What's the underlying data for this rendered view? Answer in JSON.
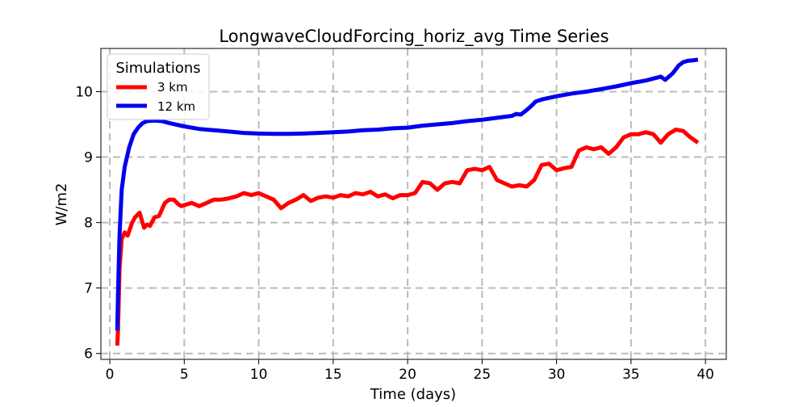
{
  "chart_data": {
    "type": "line",
    "title": "LongwaveCloudForcing_horiz_avg Time Series",
    "xlabel": "Time (days)",
    "ylabel": "W/m2",
    "xlim": [
      -0.6,
      41.4
    ],
    "ylim": [
      5.91,
      10.66
    ],
    "xticks": [
      0,
      5,
      10,
      15,
      20,
      25,
      30,
      35,
      40
    ],
    "yticks": [
      6,
      7,
      8,
      9,
      10
    ],
    "grid": true,
    "legend": {
      "title": "Simulations",
      "placement": "top-left"
    },
    "series": [
      {
        "name": "3 km",
        "color": "#ff0000",
        "x": [
          0.5,
          0.55,
          0.65,
          0.8,
          1.0,
          1.2,
          1.5,
          1.7,
          2.0,
          2.3,
          2.5,
          2.7,
          3.0,
          3.3,
          3.7,
          4.0,
          4.3,
          4.6,
          4.8,
          5.2,
          5.5,
          6.0,
          6.5,
          7.0,
          7.5,
          8.0,
          8.5,
          9.0,
          9.5,
          10.0,
          10.5,
          11.0,
          11.5,
          12.0,
          12.5,
          13.0,
          13.5,
          14.0,
          14.5,
          15.0,
          15.5,
          16.0,
          16.5,
          17.0,
          17.5,
          18.0,
          18.5,
          19.0,
          19.5,
          20.0,
          20.5,
          21.0,
          21.5,
          22.0,
          22.5,
          23.0,
          23.5,
          24.0,
          24.5,
          25.0,
          25.5,
          26.0,
          26.5,
          27.0,
          27.5,
          28.0,
          28.5,
          29.0,
          29.5,
          30.0,
          30.5,
          31.0,
          31.5,
          32.0,
          32.5,
          33.0,
          33.5,
          34.0,
          34.5,
          35.0,
          35.5,
          36.0,
          36.5,
          37.0,
          37.5,
          38.0,
          38.5,
          39.0,
          39.5
        ],
        "values": [
          6.12,
          6.35,
          7.3,
          7.75,
          7.85,
          7.8,
          8.0,
          8.08,
          8.15,
          7.92,
          7.97,
          7.95,
          8.08,
          8.1,
          8.3,
          8.35,
          8.35,
          8.28,
          8.25,
          8.28,
          8.3,
          8.25,
          8.3,
          8.35,
          8.35,
          8.37,
          8.4,
          8.45,
          8.42,
          8.45,
          8.4,
          8.35,
          8.22,
          8.3,
          8.35,
          8.42,
          8.33,
          8.38,
          8.4,
          8.38,
          8.42,
          8.4,
          8.45,
          8.43,
          8.47,
          8.4,
          8.43,
          8.37,
          8.42,
          8.42,
          8.45,
          8.62,
          8.6,
          8.5,
          8.6,
          8.62,
          8.6,
          8.8,
          8.82,
          8.8,
          8.85,
          8.65,
          8.6,
          8.55,
          8.57,
          8.55,
          8.65,
          8.88,
          8.9,
          8.8,
          8.83,
          8.85,
          9.1,
          9.15,
          9.12,
          9.15,
          9.05,
          9.15,
          9.3,
          9.35,
          9.35,
          9.38,
          9.35,
          9.22,
          9.35,
          9.42,
          9.4,
          9.3,
          9.22
        ]
      },
      {
        "name": "12 km",
        "color": "#0000ee",
        "x": [
          0.5,
          0.55,
          0.65,
          0.8,
          1.0,
          1.3,
          1.6,
          1.9,
          2.2,
          2.5,
          3.0,
          3.5,
          4.0,
          5.0,
          6.0,
          7.0,
          8.0,
          9.0,
          10.0,
          11.0,
          12.0,
          13.0,
          14.0,
          15.0,
          16.0,
          17.0,
          18.0,
          19.0,
          20.0,
          21.0,
          22.0,
          23.0,
          24.0,
          25.0,
          26.0,
          27.0,
          27.3,
          27.6,
          28.0,
          28.3,
          28.6,
          29.0,
          30.0,
          31.0,
          32.0,
          33.0,
          34.0,
          35.0,
          36.0,
          37.0,
          37.3,
          37.5,
          37.8,
          38.2,
          38.5,
          38.8,
          39.2,
          39.5
        ],
        "values": [
          6.35,
          6.9,
          7.8,
          8.5,
          8.85,
          9.15,
          9.35,
          9.45,
          9.52,
          9.55,
          9.56,
          9.55,
          9.52,
          9.47,
          9.43,
          9.41,
          9.39,
          9.37,
          9.36,
          9.355,
          9.355,
          9.36,
          9.37,
          9.38,
          9.39,
          9.41,
          9.42,
          9.44,
          9.45,
          9.48,
          9.5,
          9.52,
          9.55,
          9.57,
          9.6,
          9.63,
          9.66,
          9.65,
          9.72,
          9.78,
          9.85,
          9.88,
          9.93,
          9.97,
          10.0,
          10.04,
          10.08,
          10.13,
          10.17,
          10.23,
          10.18,
          10.22,
          10.28,
          10.4,
          10.45,
          10.47,
          10.48,
          10.49
        ]
      }
    ]
  }
}
